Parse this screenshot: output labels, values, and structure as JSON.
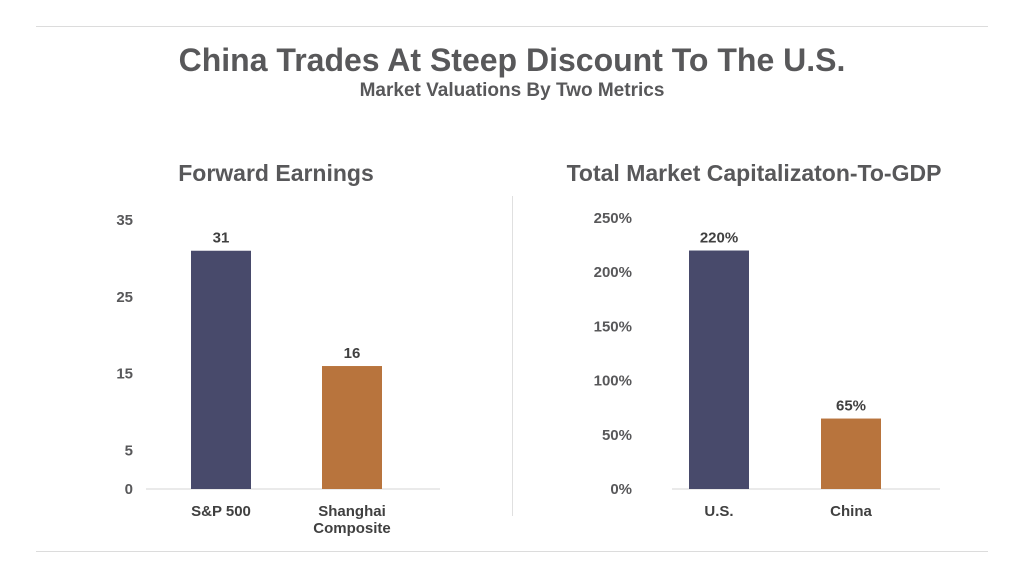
{
  "title": "China Trades At Steep Discount To The U.S.",
  "subtitle": "Market Valuations By Two Metrics",
  "colors": {
    "navy": "#484a6b",
    "orange": "#b8743d",
    "text": "#58585a"
  },
  "chart_data": [
    {
      "type": "bar",
      "title": "Forward Earnings",
      "categories": [
        [
          "S&P 500"
        ],
        [
          "Shanghai",
          "Composite"
        ]
      ],
      "values": [
        31,
        16
      ],
      "value_labels": [
        "31",
        "16"
      ],
      "yticks": [
        0,
        5,
        15,
        25,
        35
      ],
      "ytick_labels": [
        "0",
        "5",
        "15",
        "25",
        "35"
      ],
      "ylim": [
        0,
        35
      ],
      "bar_colors": [
        "#484a6b",
        "#b8743d"
      ]
    },
    {
      "type": "bar",
      "title": "Total Market Capitalizaton-To-GDP",
      "categories": [
        [
          "U.S."
        ],
        [
          "China"
        ]
      ],
      "values": [
        220,
        65
      ],
      "value_labels": [
        "220%",
        "65%"
      ],
      "yticks": [
        0,
        50,
        100,
        150,
        200,
        250
      ],
      "ytick_labels": [
        "0%",
        "50%",
        "100%",
        "150%",
        "200%",
        "250%"
      ],
      "ylim": [
        0,
        250
      ],
      "bar_colors": [
        "#484a6b",
        "#b8743d"
      ]
    }
  ]
}
